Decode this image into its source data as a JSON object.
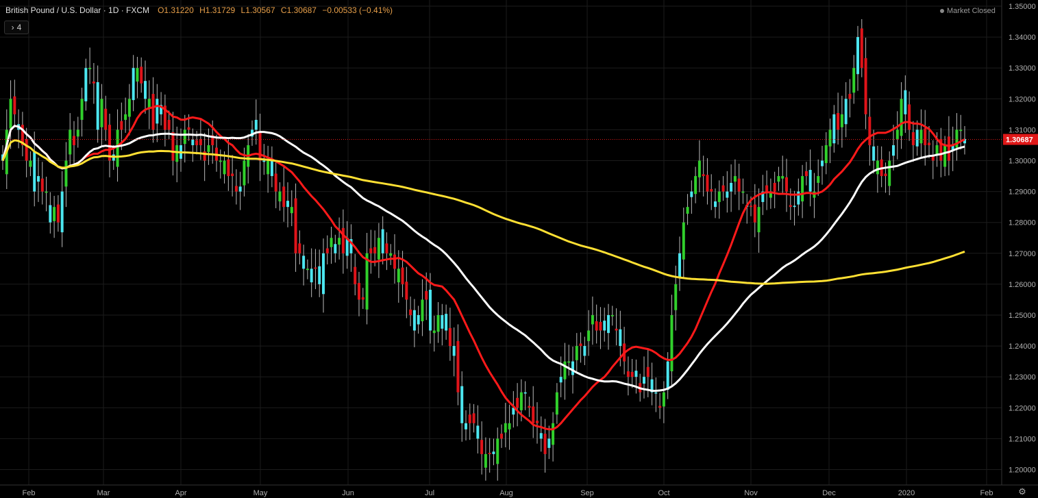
{
  "header": {
    "title": "British Pound / U.S. Dollar · 1D · FXCM",
    "open": "O1.31220",
    "high": "H1.31729",
    "low": "L1.30567",
    "close": "C1.30687",
    "change": "−0.00533 (−0.41%)"
  },
  "indicators_toggle": {
    "icon": "chevron-right-icon",
    "count": "4"
  },
  "status": "Market Closed",
  "price_label": "1.30687",
  "colors": {
    "background": "#000000",
    "up": "#31d02c",
    "down": "#e0141a",
    "up_alt": "#4ce6f0",
    "ma_red": "#ff1a1a",
    "ma_white": "#ffffff",
    "ma_yellow": "#ffe033",
    "grid": "#1c1c1c",
    "axis_text": "#b0b0b0",
    "price_line": "#e01818"
  },
  "chart_data": {
    "type": "candlestick",
    "title": "British Pound / U.S. Dollar",
    "timeframe": "1D",
    "ylim": [
      1.195,
      1.352
    ],
    "y_ticks": [
      "1.20000",
      "1.21000",
      "1.22000",
      "1.23000",
      "1.24000",
      "1.25000",
      "1.26000",
      "1.27000",
      "1.28000",
      "1.29000",
      "1.30000",
      "1.31000",
      "1.32000",
      "1.33000",
      "1.34000",
      "1.35000"
    ],
    "x_ticks": [
      "Feb",
      "Mar",
      "Apr",
      "May",
      "Jun",
      "Jul",
      "Aug",
      "Sep",
      "Oct",
      "Nov",
      "Dec",
      "2020",
      "Feb"
    ],
    "last_price": 1.30687,
    "closes": [
      1.3,
      1.31,
      1.32,
      1.315,
      1.31,
      1.305,
      1.3,
      1.3,
      1.29,
      1.295,
      1.29,
      1.29,
      1.28,
      1.285,
      1.28,
      1.29,
      1.3,
      1.31,
      1.305,
      1.31,
      1.32,
      1.33,
      1.33,
      1.325,
      1.31,
      1.32,
      1.31,
      1.3,
      1.3,
      1.31,
      1.31,
      1.315,
      1.32,
      1.33,
      1.33,
      1.325,
      1.32,
      1.32,
      1.31,
      1.32,
      1.315,
      1.31,
      1.31,
      1.3,
      1.305,
      1.305,
      1.31,
      1.31,
      1.305,
      1.305,
      1.305,
      1.3,
      1.305,
      1.305,
      1.3,
      1.3,
      1.3,
      1.295,
      1.295,
      1.29,
      1.29,
      1.3,
      1.305,
      1.31,
      1.31,
      1.3,
      1.3,
      1.3,
      1.295,
      1.29,
      1.29,
      1.285,
      1.285,
      1.285,
      1.27,
      1.27,
      1.265,
      1.265,
      1.265,
      1.265,
      1.26,
      1.27,
      1.27,
      1.275,
      1.27,
      1.275,
      1.27,
      1.275,
      1.27,
      1.26,
      1.255,
      1.255,
      1.27,
      1.27,
      1.27,
      1.275,
      1.27,
      1.27,
      1.27,
      1.265,
      1.265,
      1.26,
      1.255,
      1.25,
      1.245,
      1.25,
      1.255,
      1.255,
      1.245,
      1.245,
      1.25,
      1.25,
      1.245,
      1.24,
      1.24,
      1.225,
      1.215,
      1.215,
      1.215,
      1.215,
      1.21,
      1.205,
      1.205,
      1.205,
      1.205,
      1.21,
      1.21,
      1.215,
      1.215,
      1.22,
      1.22,
      1.225,
      1.225,
      1.22,
      1.215,
      1.215,
      1.21,
      1.205,
      1.21,
      1.215,
      1.225,
      1.23,
      1.235,
      1.235,
      1.235,
      1.24,
      1.24,
      1.24,
      1.245,
      1.25,
      1.245,
      1.245,
      1.245,
      1.25,
      1.25,
      1.245,
      1.24,
      1.235,
      1.23,
      1.23,
      1.23,
      1.225,
      1.23,
      1.23,
      1.225,
      1.225,
      1.22,
      1.225,
      1.235,
      1.25,
      1.26,
      1.27,
      1.28,
      1.285,
      1.29,
      1.295,
      1.3,
      1.295,
      1.29,
      1.29,
      1.285,
      1.29,
      1.29,
      1.29,
      1.29,
      1.295,
      1.29,
      1.29,
      1.285,
      1.285,
      1.28,
      1.285,
      1.29,
      1.29,
      1.29,
      1.29,
      1.295,
      1.295,
      1.29,
      1.285,
      1.285,
      1.29,
      1.295,
      1.295,
      1.29,
      1.29,
      1.295,
      1.3,
      1.305,
      1.31,
      1.315,
      1.31,
      1.315,
      1.32,
      1.32,
      1.33,
      1.34,
      1.33,
      1.315,
      1.305,
      1.3,
      1.3,
      1.295,
      1.295,
      1.3,
      1.305,
      1.31,
      1.32,
      1.315,
      1.31,
      1.305,
      1.31,
      1.31,
      1.305,
      1.305,
      1.3,
      1.305,
      1.3,
      1.305,
      1.3,
      1.305,
      1.31,
      1.31,
      1.307
    ]
  }
}
